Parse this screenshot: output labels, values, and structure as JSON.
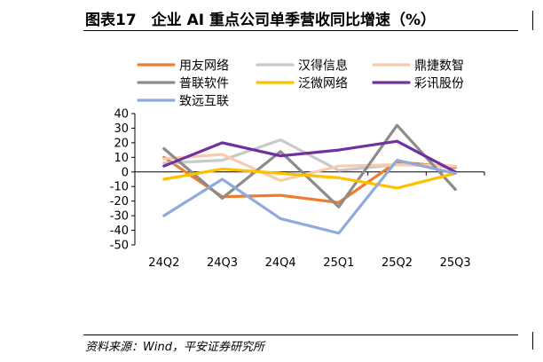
{
  "title": "图表17　企业 AI 重点公司单季营收同比增速（%）",
  "source": "资料来源：Wind，平安证券研究所",
  "chart_data": {
    "type": "line",
    "categories": [
      "24Q2",
      "24Q3",
      "24Q4",
      "25Q1",
      "25Q2",
      "25Q3"
    ],
    "ylim": [
      -50,
      40
    ],
    "yticks": [
      "40",
      "30",
      "20",
      "10",
      "0",
      "-10",
      "-20",
      "-30",
      "-40",
      "-50"
    ],
    "grid": false,
    "legend_position": "top",
    "series": [
      {
        "name": "用友网络",
        "color": "#ED7D31",
        "values": [
          10,
          -17,
          -16,
          -21,
          7,
          3
        ]
      },
      {
        "name": "汉得信息",
        "color": "#C9C9C9",
        "values": [
          6,
          8,
          22,
          1,
          5,
          4
        ]
      },
      {
        "name": "鼎捷数智",
        "color": "#F8CBAD",
        "values": [
          9,
          12,
          -6,
          4,
          5,
          4
        ]
      },
      {
        "name": "普联软件",
        "color": "#8C8C8C",
        "values": [
          16,
          -18,
          14,
          -24,
          32,
          -12
        ]
      },
      {
        "name": "泛微网络",
        "color": "#FFC000",
        "values": [
          -5,
          2,
          -1,
          -4,
          -11,
          -1
        ]
      },
      {
        "name": "彩讯股份",
        "color": "#7030A0",
        "values": [
          4,
          20,
          11,
          15,
          21,
          0
        ]
      },
      {
        "name": "致远互联",
        "color": "#8FAADC",
        "values": [
          -30,
          -5,
          -32,
          -42,
          8,
          -1
        ]
      }
    ]
  }
}
